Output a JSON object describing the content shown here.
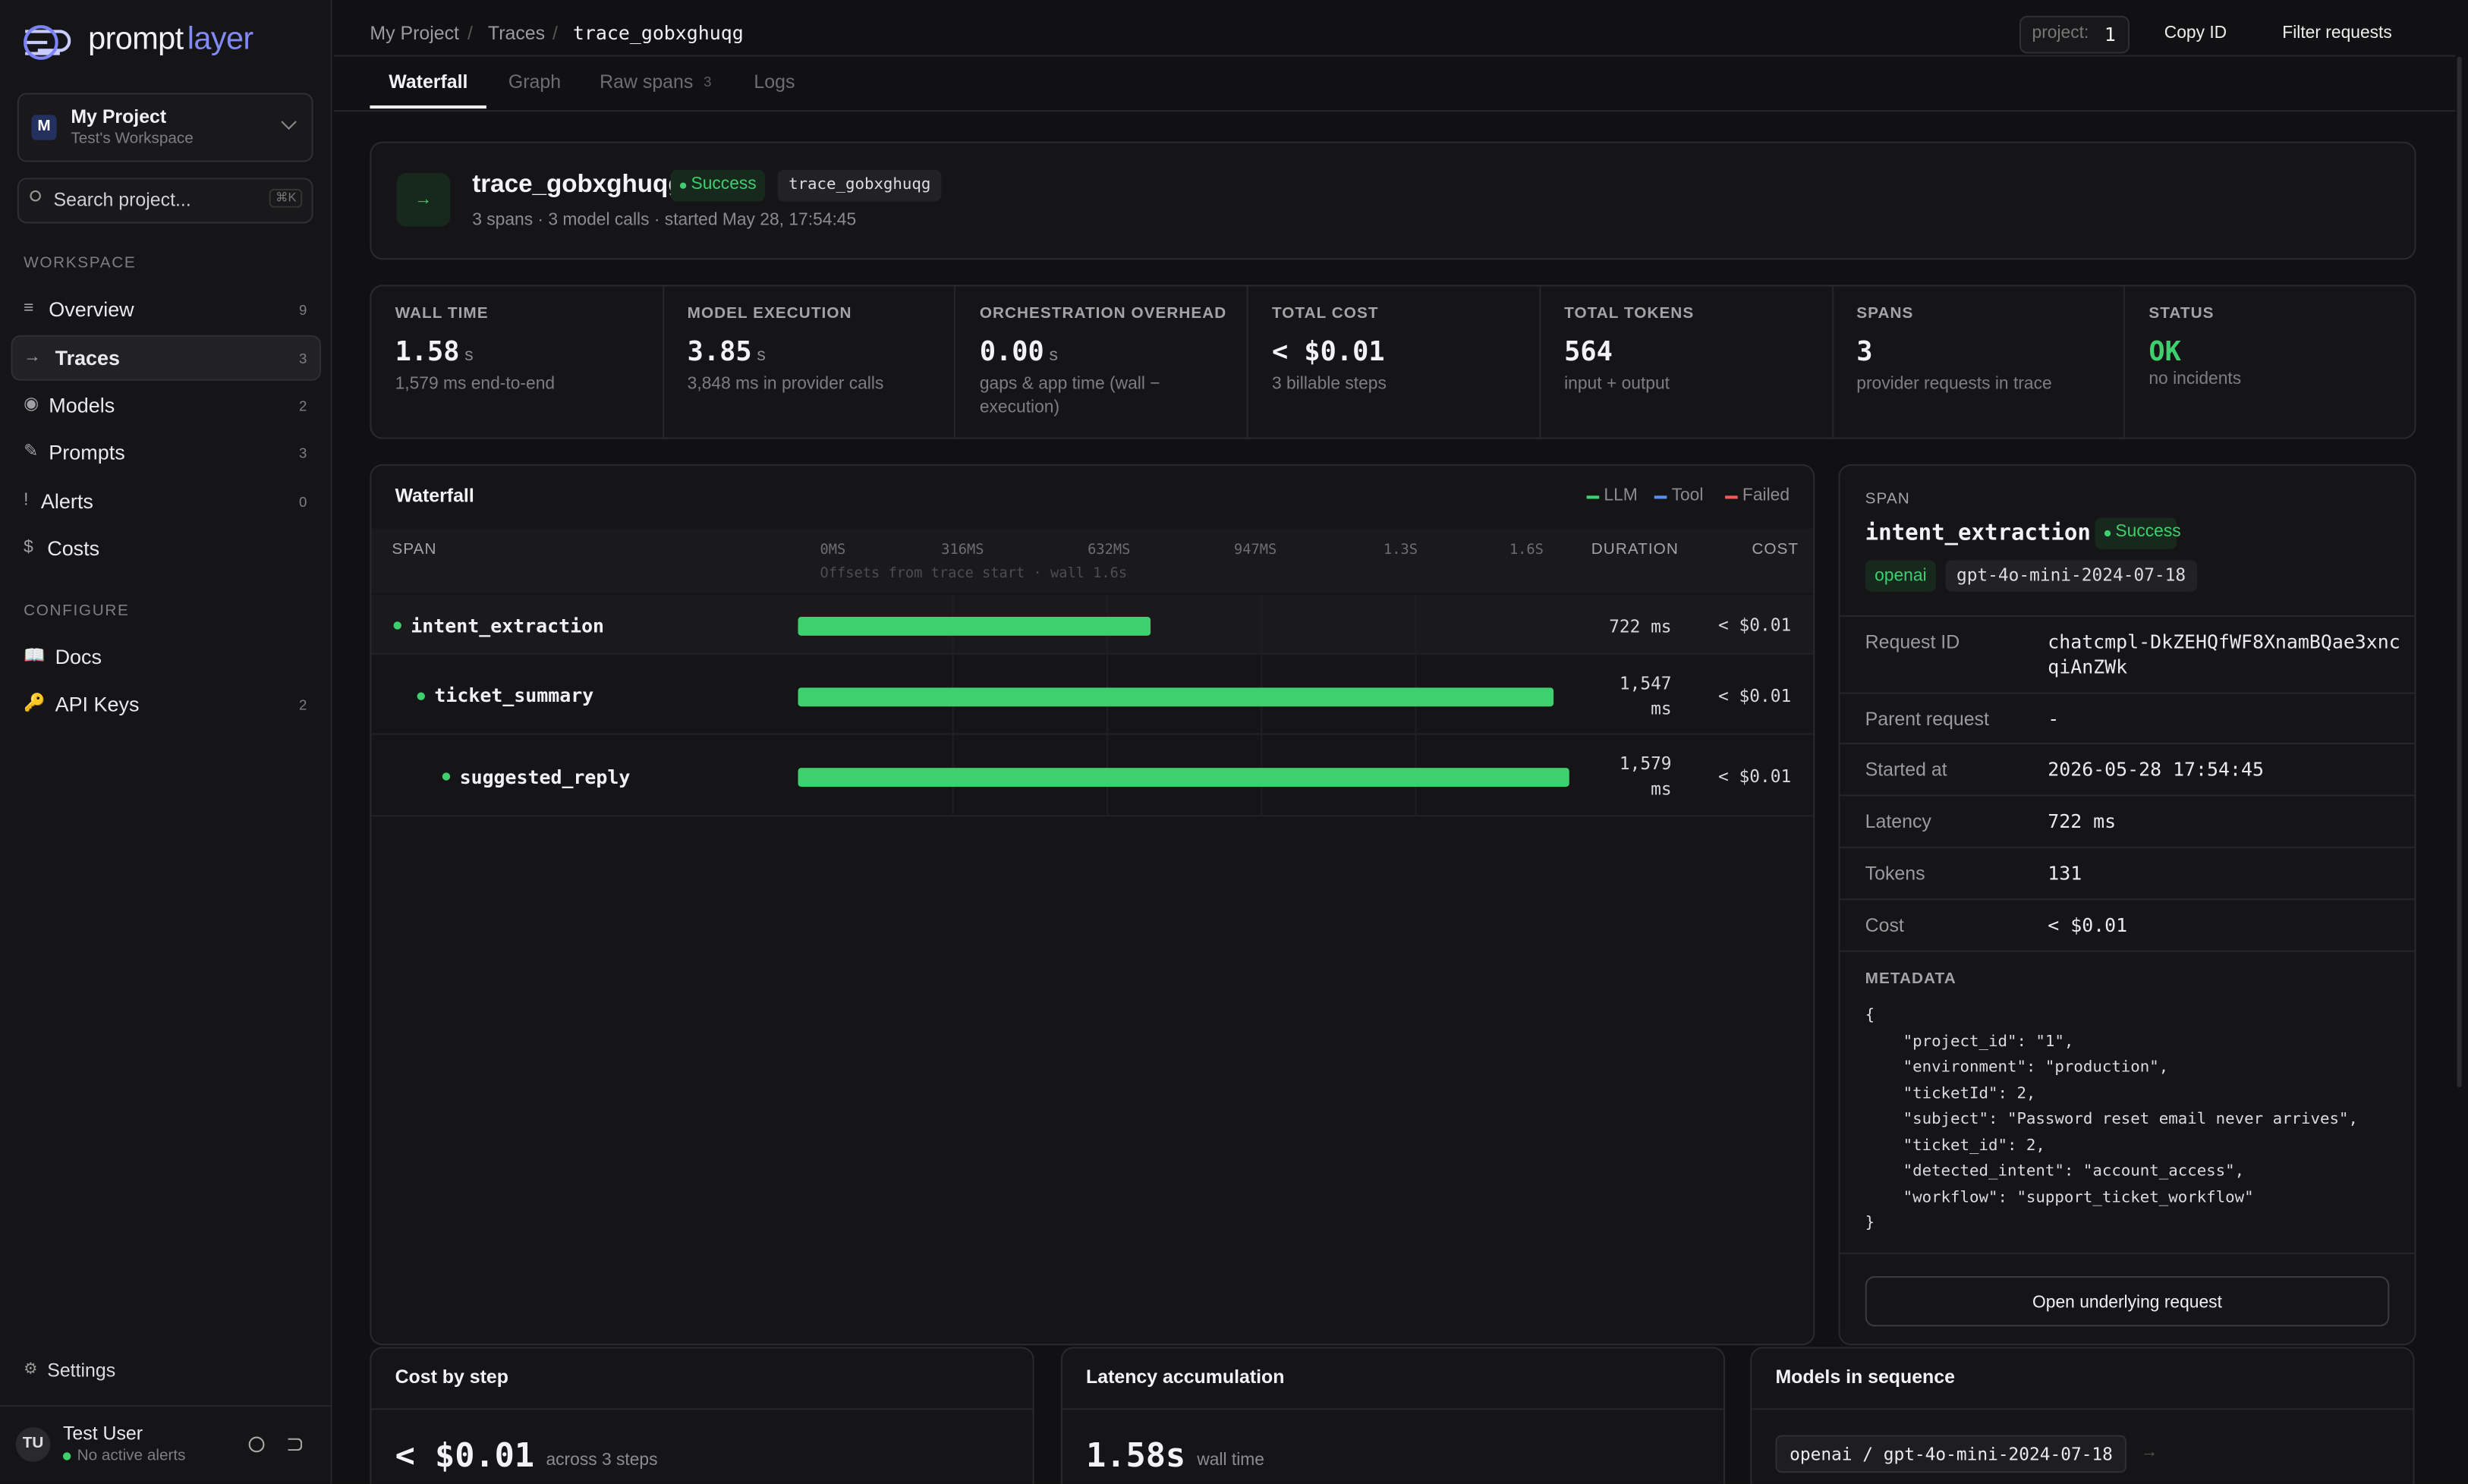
{
  "sidebar": {
    "logo": {
      "a": "prompt",
      "b": "layer"
    },
    "project": {
      "initial": "M",
      "name": "My Project",
      "workspace": "Test's Workspace"
    },
    "search": {
      "placeholder": "Search project...",
      "shortcut": "⌘K"
    },
    "sections": [
      {
        "title": "WORKSPACE",
        "items": [
          {
            "icon": "≡",
            "label": "Overview",
            "count": 9
          },
          {
            "icon": "→",
            "label": "Traces",
            "count": 3
          },
          {
            "icon": "◉",
            "label": "Models",
            "count": 2
          },
          {
            "icon": "✎",
            "label": "Prompts",
            "count": 3
          },
          {
            "icon": "!",
            "label": "Alerts",
            "count": 0
          },
          {
            "icon": "$",
            "label": "Costs"
          }
        ]
      },
      {
        "title": "CONFIGURE",
        "items": [
          {
            "icon": "📖",
            "label": "Docs"
          },
          {
            "icon": "🔑",
            "label": "API Keys",
            "count": 2
          }
        ]
      }
    ],
    "settings": {
      "icon": "⚙",
      "label": "Settings"
    },
    "user": {
      "initials": "TU",
      "name": "Test User",
      "status": "No active alerts"
    }
  },
  "topbar": {
    "breadcrumbs": [
      "My Project",
      "Traces",
      "trace_gobxghuqg"
    ],
    "separator": "/",
    "project_label": "project:",
    "project_value": 1,
    "actions": [
      "Copy ID",
      "Filter requests"
    ]
  },
  "tabs": [
    {
      "label": "Waterfall"
    },
    {
      "label": "Graph"
    },
    {
      "label": "Raw spans",
      "count": 3
    },
    {
      "label": "Logs"
    }
  ],
  "trace": {
    "icon": "→",
    "name": "trace_gobxghuqg",
    "status": "Success",
    "id": "trace_gobxghuqg",
    "summary": "3 spans · 3 model calls · started May 28, 17:54:45"
  },
  "stats": [
    {
      "label": "WALL TIME",
      "value": "1.58",
      "unit": "s",
      "note": "1,579 ms end-to-end"
    },
    {
      "label": "MODEL EXECUTION",
      "value": "3.85",
      "unit": "s",
      "note": "3,848 ms in provider calls"
    },
    {
      "label": "ORCHESTRATION OVERHEAD",
      "value": "0.00",
      "unit": "s",
      "note": "gaps & app time (wall −",
      "note2": "execution)"
    },
    {
      "label": "TOTAL COST",
      "value": "< $0.01",
      "note": "3 billable steps"
    },
    {
      "label": "TOTAL TOKENS",
      "value": "564",
      "note": "input + output"
    },
    {
      "label": "SPANS",
      "value": "3",
      "note": "provider requests in trace"
    },
    {
      "label": "STATUS",
      "value": "OK",
      "note": "no incidents"
    }
  ],
  "waterfall": {
    "title": "Waterfall",
    "legend": [
      {
        "label": "LLM",
        "color": "#3ecf6e"
      },
      {
        "label": "Tool",
        "color": "#5b8def"
      },
      {
        "label": "Failed",
        "color": "#ef5b5b"
      }
    ],
    "columns": {
      "span": "SPAN",
      "duration": "DURATION",
      "cost": "COST"
    },
    "axis_ticks": [
      "0MS",
      "316MS",
      "632MS",
      "947MS",
      "1.3S",
      "1.6S"
    ],
    "axis_note": "Offsets from trace start · wall 1.6s",
    "rows": [
      {
        "name": "intent_extraction",
        "duration": 722,
        "duration_label": "722 ms",
        "cost": "< $0.01"
      },
      {
        "name": "ticket_summary",
        "duration": 1547,
        "duration_label": "1,547 ms",
        "cost": "< $0.01"
      },
      {
        "name": "suggested_reply",
        "duration": 1579,
        "duration_label": "1,579 ms",
        "cost": "< $0.01"
      }
    ]
  },
  "detail": {
    "label": "SPAN",
    "name": "intent_extraction",
    "status": "Success",
    "tags": [
      "openai",
      "gpt-4o-mini-2024-07-18"
    ],
    "rows": [
      [
        "Request ID",
        "chatcmpl-DkZEHQfWF8XnamBQae3xnc",
        "qiAnZWk"
      ],
      [
        "Parent request",
        "-"
      ],
      [
        "Started at",
        "2026-05-28 17:54:45"
      ],
      [
        "Latency",
        "722 ms"
      ],
      [
        "Tokens",
        "131"
      ],
      [
        "Cost",
        "< $0.01"
      ]
    ],
    "metadata_title": "METADATA",
    "metadata": [
      "{",
      "    \"project_id\": \"1\",",
      "    \"environment\": \"production\",",
      "    \"ticketId\": 2,",
      "    \"subject\": \"Password reset email never arrives\",",
      "    \"ticket_id\": 2,",
      "    \"detected_intent\": \"account_access\",",
      "    \"workflow\": \"support_ticket_workflow\"",
      "}"
    ],
    "button": "Open underlying request"
  },
  "bottom": [
    {
      "title": "Cost by step",
      "value": "< $0.01",
      "note": "across 3 steps"
    },
    {
      "title": "Latency accumulation",
      "value": "1.58s",
      "note": "wall time"
    },
    {
      "title": "Models in sequence",
      "chip": "openai / gpt-4o-mini-2024-07-18",
      "arrow": "→"
    }
  ]
}
